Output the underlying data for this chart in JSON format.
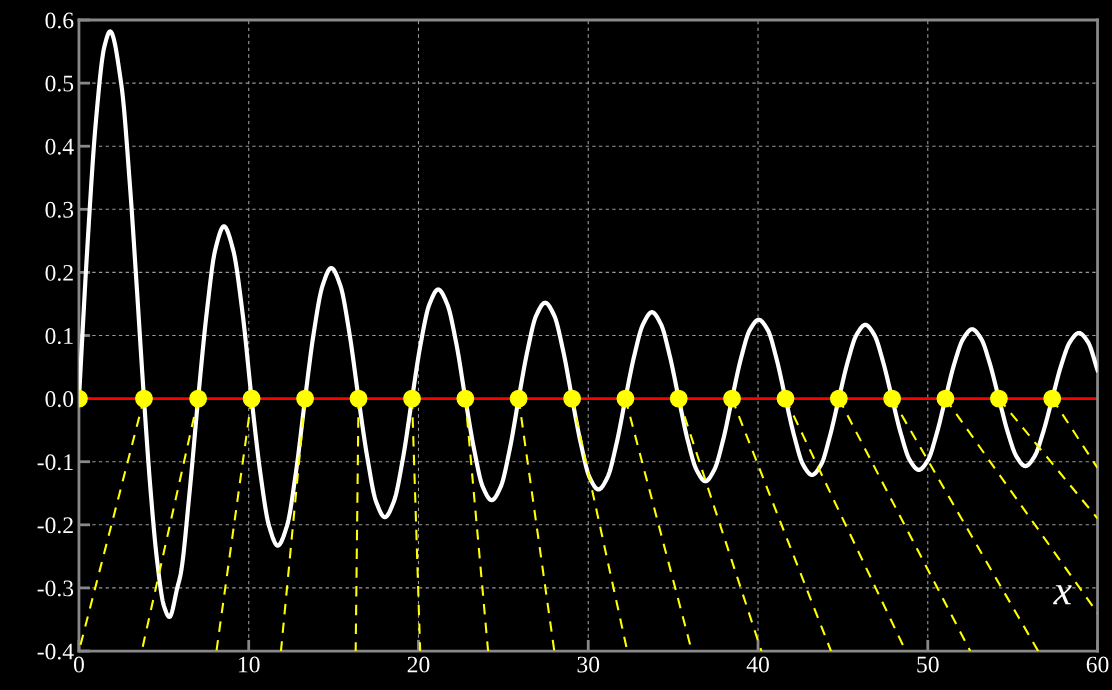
{
  "chart_data": {
    "type": "line",
    "xlabel": "x",
    "xlim": [
      0,
      60
    ],
    "ylim": [
      -0.4,
      0.6
    ],
    "xticks": [
      0,
      10,
      20,
      30,
      40,
      50,
      60
    ],
    "yticks": [
      -0.4,
      -0.3,
      -0.2,
      -0.1,
      {
        "value": 0,
        "label": "0.0"
      },
      0.1,
      0.2,
      0.3,
      0.4,
      0.5,
      0.6
    ],
    "grid": true,
    "ref_lines": [
      {
        "axis": "y",
        "value": 0,
        "color": "#ff0000",
        "line_style": "solid"
      }
    ],
    "series": [
      {
        "color": "#ffffff",
        "line_style": "solid",
        "marker": "none",
        "x": [
          0,
          0.5,
          1,
          1.5,
          1.84,
          2.5,
          3,
          3.4,
          3.83,
          4.2,
          4.6,
          5.0,
          5.33,
          5.8,
          6.0,
          6.5,
          7.02,
          7.53,
          8.03,
          8.54,
          9.08,
          9.63,
          10.17,
          10.68,
          11.2,
          11.71,
          12.25,
          12.78,
          13.32,
          13.83,
          14.35,
          14.86,
          15.4,
          15.93,
          16.47,
          16.99,
          17.5,
          18.02,
          18.55,
          19.09,
          19.62,
          20.13,
          20.65,
          21.16,
          21.69,
          22.23,
          22.76,
          23.28,
          23.79,
          24.31,
          24.84,
          25.37,
          25.9,
          26.42,
          26.94,
          27.46,
          27.99,
          28.52,
          29.05,
          29.57,
          30.08,
          30.6,
          31.13,
          31.66,
          32.19,
          32.71,
          33.23,
          33.75,
          34.28,
          34.8,
          35.33,
          35.85,
          36.38,
          36.9,
          37.42,
          37.95,
          38.47,
          38.99,
          39.52,
          40.04,
          40.57,
          41.09,
          41.62,
          42.14,
          42.66,
          43.18,
          43.71,
          44.23,
          44.76,
          45.28,
          45.8,
          46.32,
          46.85,
          47.37,
          47.9,
          48.42,
          48.95,
          49.47,
          50.0,
          50.52,
          51.04,
          51.56,
          52.09,
          52.61,
          53.14,
          53.66,
          54.19,
          54.71,
          55.23,
          55.75,
          56.28,
          56.8,
          57.33,
          57.85,
          58.38,
          58.9,
          59.43,
          60
        ],
        "values": [
          0,
          0.242,
          0.44,
          0.558,
          0.582,
          0.497,
          0.339,
          0.179,
          0,
          -0.139,
          -0.256,
          -0.328,
          -0.346,
          -0.299,
          -0.277,
          -0.153,
          0,
          0.137,
          0.236,
          0.273,
          0.236,
          0.137,
          0,
          -0.117,
          -0.202,
          -0.233,
          -0.202,
          -0.117,
          0,
          0.104,
          0.179,
          0.207,
          0.179,
          0.104,
          0,
          -0.094,
          -0.163,
          -0.188,
          -0.163,
          -0.094,
          0,
          0.087,
          0.15,
          0.173,
          0.15,
          0.087,
          0,
          -0.081,
          -0.14,
          -0.161,
          -0.14,
          -0.081,
          0,
          0.076,
          0.132,
          0.152,
          0.132,
          0.076,
          0,
          -0.072,
          -0.125,
          -0.144,
          -0.125,
          -0.072,
          0,
          0.068,
          0.118,
          0.137,
          0.118,
          0.068,
          0,
          -0.065,
          -0.113,
          -0.131,
          -0.113,
          -0.065,
          0,
          0.063,
          0.109,
          0.125,
          0.109,
          0.063,
          0,
          -0.06,
          -0.105,
          -0.121,
          -0.105,
          -0.06,
          0,
          0.058,
          0.101,
          0.117,
          0.101,
          0.058,
          0,
          -0.056,
          -0.098,
          -0.113,
          -0.098,
          -0.056,
          0,
          0.055,
          0.095,
          0.11,
          0.095,
          0.055,
          0,
          -0.053,
          -0.092,
          -0.107,
          -0.092,
          -0.053,
          0,
          0.052,
          0.09,
          0.104,
          0.09,
          0.045
        ]
      },
      {
        "color": "#ffff00",
        "line_style": "dashed",
        "marker": "none",
        "x": [
          3.83,
          0.0,
          null,
          7.02,
          3.7,
          null,
          10.17,
          8.1,
          null,
          13.32,
          11.9,
          null,
          16.47,
          16.3,
          null,
          19.62,
          20.1,
          null,
          22.76,
          24.1,
          null,
          25.9,
          28.0,
          null,
          29.05,
          32.3,
          null,
          32.19,
          36.1,
          null,
          35.33,
          40.2,
          null,
          38.47,
          44.3,
          null,
          41.62,
          48.7,
          null,
          44.76,
          52.5,
          null,
          47.9,
          56.5,
          null,
          51.04,
          60,
          null,
          54.19,
          60,
          null,
          57.33,
          60
        ],
        "values": [
          0,
          -0.4,
          null,
          0,
          -0.4,
          null,
          0,
          -0.4,
          null,
          0,
          -0.4,
          null,
          0,
          -0.4,
          null,
          0,
          -0.4,
          null,
          0,
          -0.4,
          null,
          0,
          -0.4,
          null,
          0,
          -0.4,
          null,
          0,
          -0.4,
          null,
          0,
          -0.4,
          null,
          0,
          -0.4,
          null,
          0,
          -0.4,
          null,
          0,
          -0.4,
          null,
          0,
          -0.4,
          null,
          0,
          -0.34,
          null,
          0,
          -0.19,
          null,
          0,
          -0.11
        ]
      },
      {
        "type": "scatter",
        "color": "#ffff00",
        "marker": "circle",
        "x": [
          0,
          3.83,
          7.02,
          10.17,
          13.32,
          16.47,
          19.62,
          22.76,
          25.9,
          29.05,
          32.19,
          35.33,
          38.47,
          41.62,
          44.76,
          47.9,
          51.04,
          54.19,
          57.33
        ],
        "values": [
          0,
          0,
          0,
          0,
          0,
          0,
          0,
          0,
          0,
          0,
          0,
          0,
          0,
          0,
          0,
          0,
          0,
          0,
          0
        ]
      }
    ]
  }
}
